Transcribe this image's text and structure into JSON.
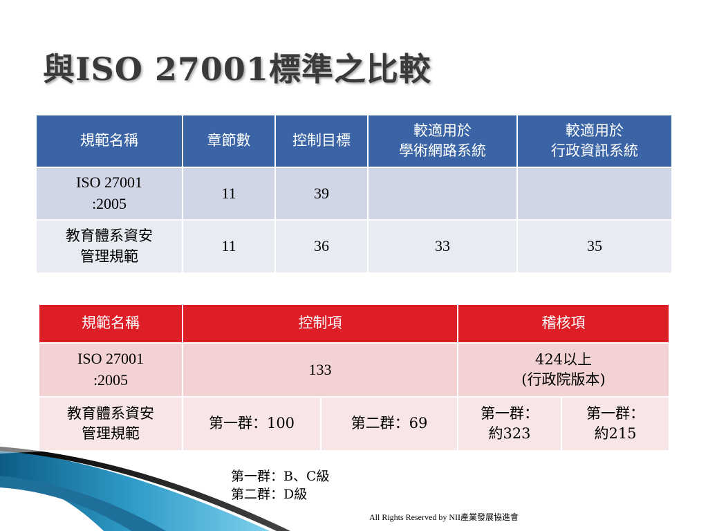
{
  "title": "與ISO 27001標準之比較",
  "table1": {
    "headers": [
      "規範名稱",
      "章節數",
      "控制目標",
      "較適用於\n學術網路系統",
      "較適用於\n行政資訊系統"
    ],
    "rows": [
      [
        "ISO 27001\n:2005",
        "11",
        "39",
        "",
        ""
      ],
      [
        "教育體系資安\n管理規範",
        "11",
        "36",
        "33",
        "35"
      ]
    ]
  },
  "table2": {
    "headers": [
      "規範名稱",
      "控制項",
      "稽核項"
    ],
    "row1": [
      "ISO 27001\n:2005",
      "133",
      "424以上\n(行政院版本)"
    ],
    "row2": [
      "教育體系資安\n管理規範",
      "第一群：100",
      "第二群：69",
      "第一群：\n約323",
      "第一群：\n約215"
    ]
  },
  "notes": [
    "第一群：B、C級",
    "第二群：D級"
  ],
  "footer": "All Rights Reserved by NII產業發展協進會",
  "colors": {
    "table1_header": "#3a64a5",
    "table2_header": "#dd1e26",
    "deco_teal": "#2a8fb8",
    "deco_dark": "#1b1b1b"
  }
}
